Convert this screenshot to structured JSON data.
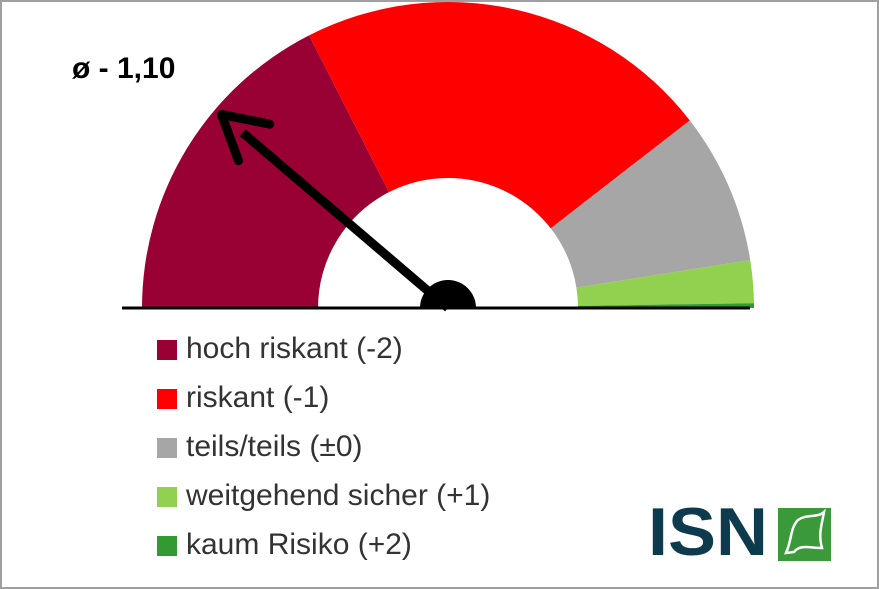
{
  "chart_data": {
    "type": "gauge",
    "average": {
      "value": -1.1,
      "label": "ø - 1,10"
    },
    "gaugelim": [
      -2,
      2
    ],
    "series": [
      {
        "name": "hoch riskant (-2)",
        "color": "#990033",
        "value": 35
      },
      {
        "name": "riskant (-1)",
        "color": "#ff0000",
        "value": 44
      },
      {
        "name": "teils/teils (±0)",
        "color": "#a6a6a6",
        "value": 16
      },
      {
        "name": "weitgehend sicher (+1)",
        "color": "#92d050",
        "value": 4.5
      },
      {
        "name": "kaum Risiko (+2)",
        "color": "#339933",
        "value": 0.5
      }
    ]
  },
  "logo": {
    "text": "ISN"
  }
}
